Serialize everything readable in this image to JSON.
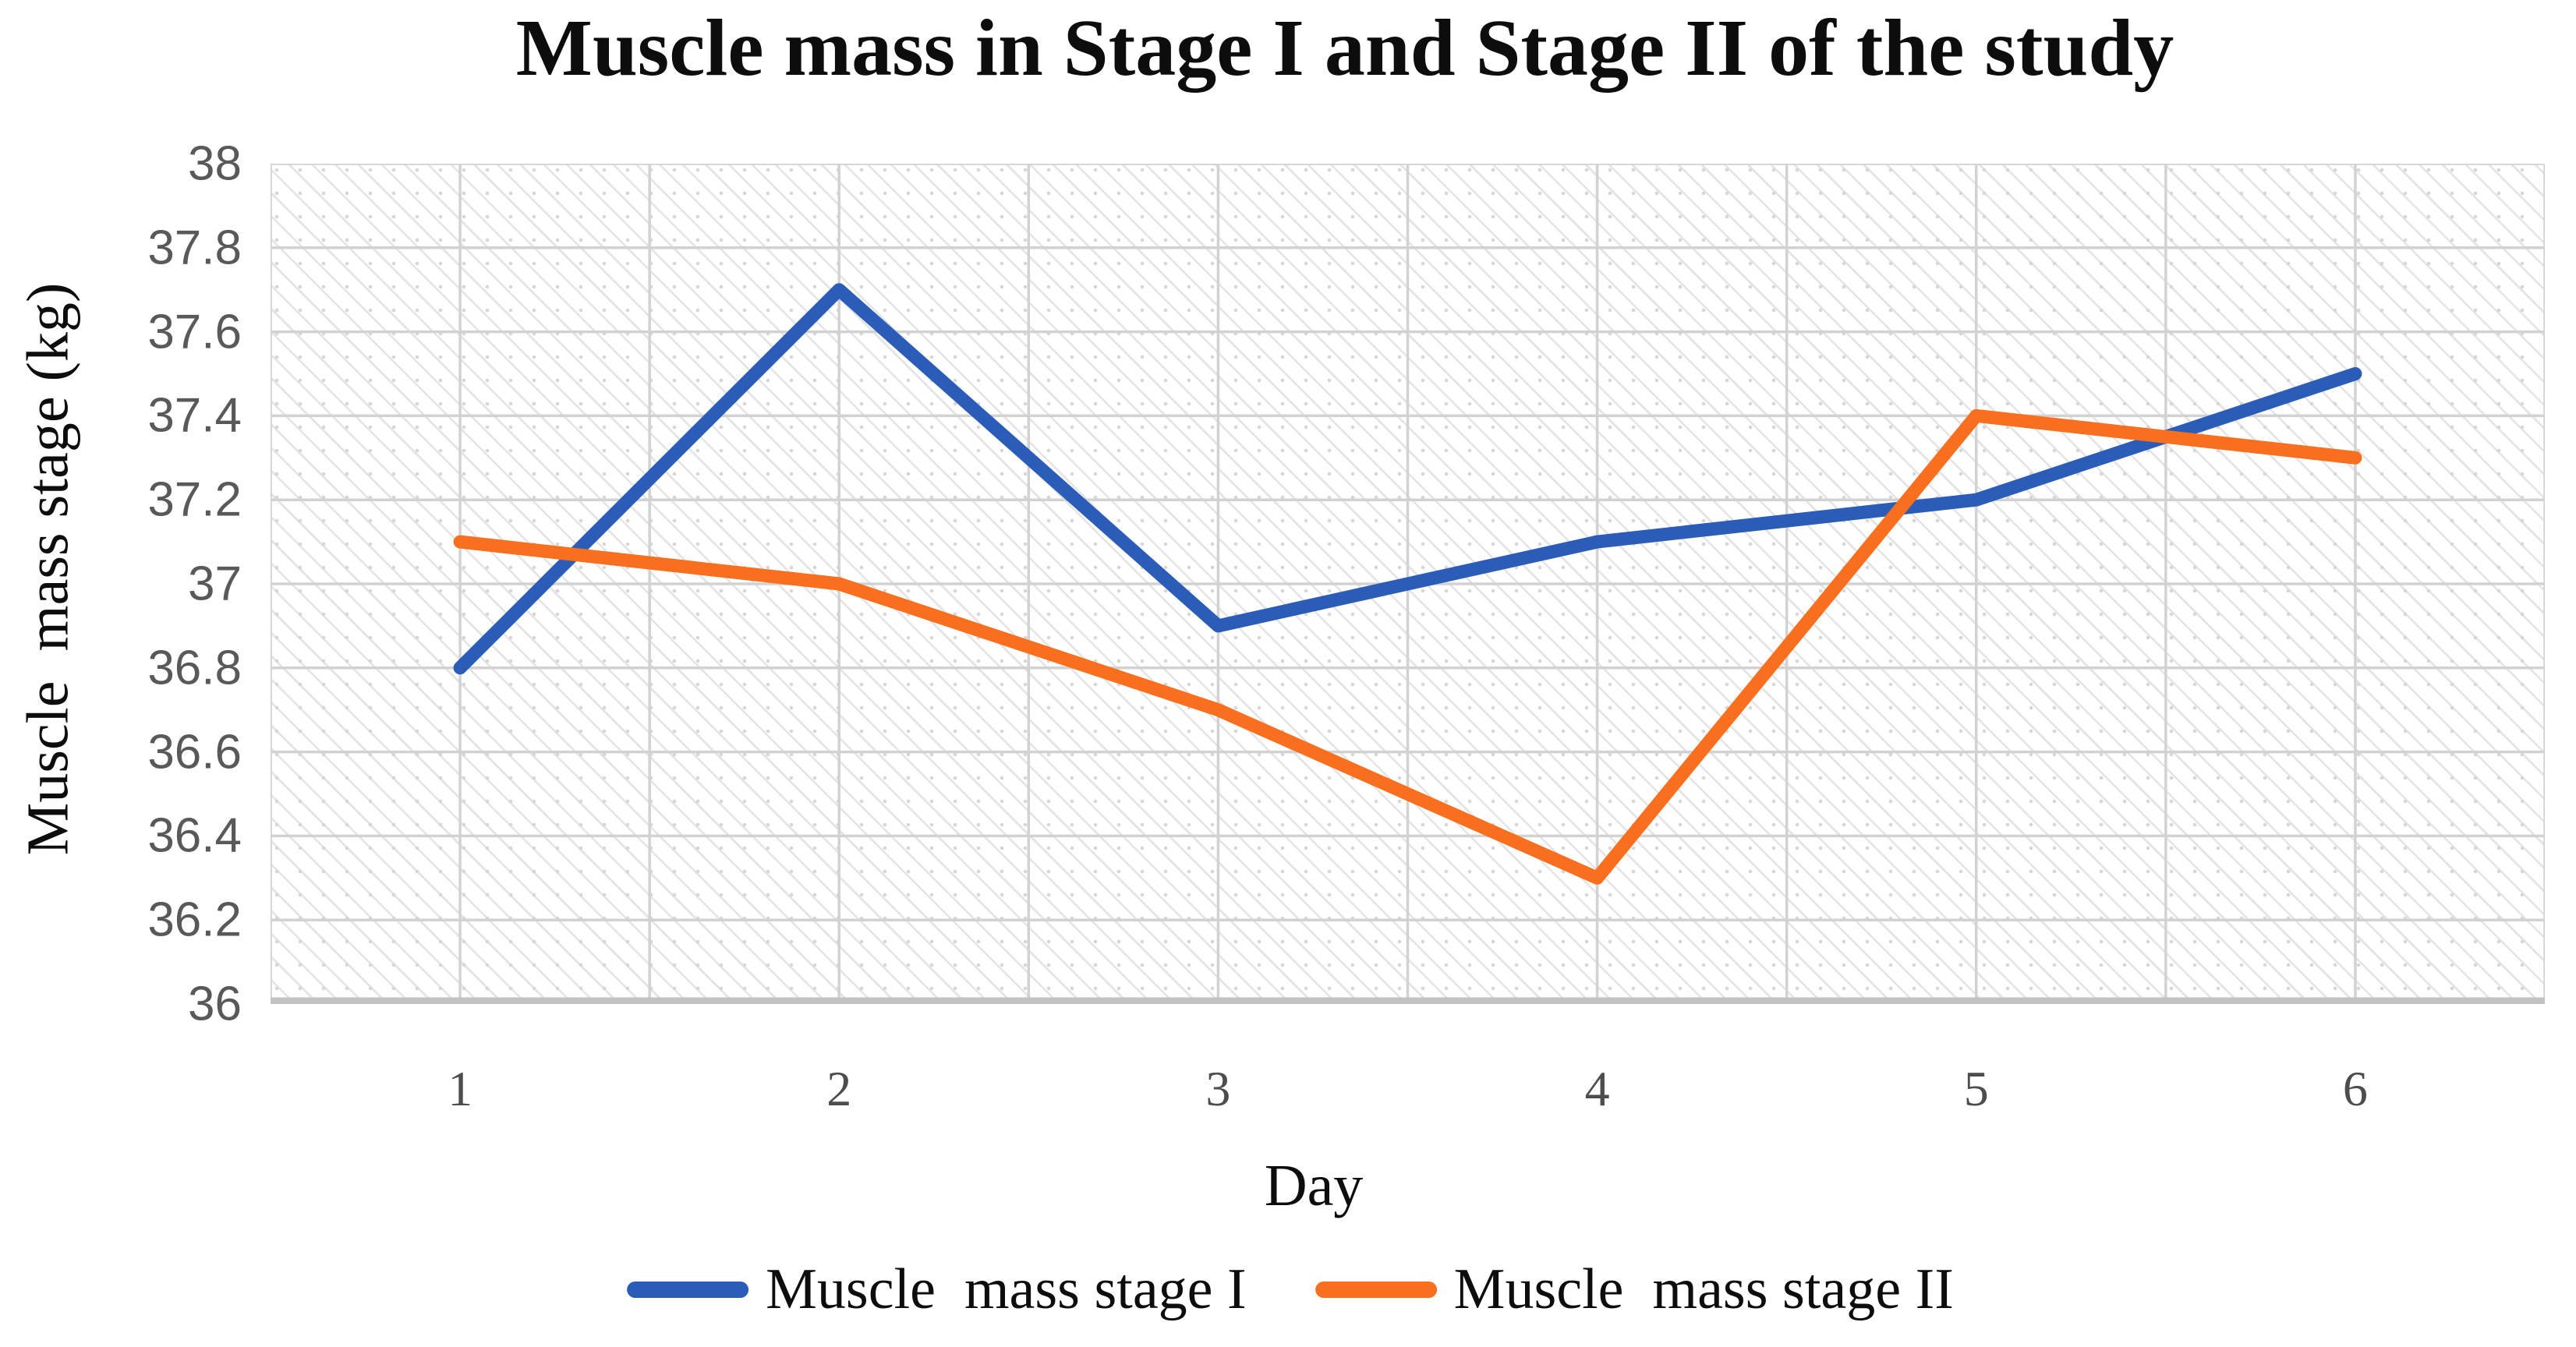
{
  "chart_data": {
    "type": "line",
    "title": "Muscle mass in Stage I and Stage II of the study",
    "xlabel": "Day",
    "ylabel": "Muscle  mass stage (kg)",
    "categories": [
      "1",
      "2",
      "3",
      "4",
      "5",
      "6"
    ],
    "series": [
      {
        "name": "Muscle  mass stage I",
        "color": "#2b5cb7",
        "values": [
          36.8,
          37.7,
          36.9,
          37.1,
          37.2,
          37.5
        ]
      },
      {
        "name": "Muscle  mass stage II",
        "color": "#f8701f",
        "values": [
          37.1,
          37.0,
          36.7,
          36.3,
          37.4,
          37.3
        ]
      }
    ],
    "ylim": [
      36,
      38
    ],
    "ytick_step": 0.2,
    "yticks": [
      "38",
      "37.8",
      "37.6",
      "37.4",
      "37.2",
      "37",
      "36.8",
      "36.6",
      "36.4",
      "36.2",
      "36"
    ],
    "grid": "both, half-category vertical spacing",
    "plot_background": "white with light gray diagonal hatch pattern",
    "gridline_color": "#d2d2d2",
    "axis_line_color": "#c2c2c2",
    "legend_position": "bottom"
  }
}
